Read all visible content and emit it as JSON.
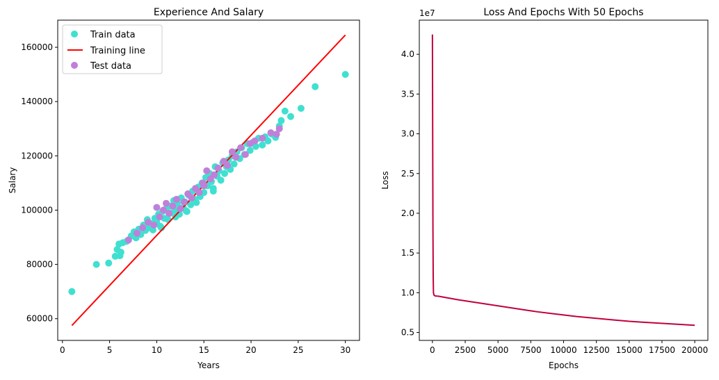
{
  "chart_data": [
    {
      "type": "scatter",
      "title": "Experience And Salary",
      "xlabel": "Years",
      "ylabel": "Salary",
      "xlim": [
        -0.5,
        31.5
      ],
      "ylim": [
        52000,
        170000
      ],
      "xticks": [
        0,
        5,
        10,
        15,
        20,
        25,
        30
      ],
      "yticks": [
        60000,
        80000,
        100000,
        120000,
        140000,
        160000
      ],
      "legend": "top-left",
      "grid": false,
      "series": [
        {
          "name": "Train data",
          "kind": "scatter",
          "color": "#40E0D0",
          "points": [
            [
              1,
              70000
            ],
            [
              3.6,
              80000
            ],
            [
              4.9,
              80500
            ],
            [
              5.6,
              83000
            ],
            [
              5.8,
              85500
            ],
            [
              6.0,
              87500
            ],
            [
              6.2,
              84500
            ],
            [
              6.4,
              88000
            ],
            [
              6.1,
              83200
            ],
            [
              6.8,
              88500
            ],
            [
              7.0,
              89000
            ],
            [
              7.3,
              90500
            ],
            [
              7.6,
              92000
            ],
            [
              7.8,
              89800
            ],
            [
              8.1,
              93000
            ],
            [
              8.3,
              91000
            ],
            [
              8.6,
              94500
            ],
            [
              8.8,
              92500
            ],
            [
              9.0,
              96500
            ],
            [
              9.2,
              93500
            ],
            [
              9.4,
              95000
            ],
            [
              9.6,
              92700
            ],
            [
              9.8,
              97000
            ],
            [
              10.0,
              95500
            ],
            [
              10.2,
              98500
            ],
            [
              10.4,
              94000
            ],
            [
              10.6,
              99500
            ],
            [
              10.8,
              97000
            ],
            [
              11.0,
              100500
            ],
            [
              11.2,
              96500
            ],
            [
              11.4,
              101500
            ],
            [
              11.6,
              99000
            ],
            [
              11.8,
              103500
            ],
            [
              12.0,
              100000
            ],
            [
              12.2,
              102500
            ],
            [
              12.4,
              98500
            ],
            [
              12.6,
              104500
            ],
            [
              12.8,
              101000
            ],
            [
              13.0,
              103000
            ],
            [
              13.2,
              99500
            ],
            [
              13.4,
              105500
            ],
            [
              13.6,
              102000
            ],
            [
              13.8,
              107000
            ],
            [
              14.0,
              104000
            ],
            [
              14.2,
              102800
            ],
            [
              14.4,
              108500
            ],
            [
              14.6,
              105000
            ],
            [
              14.8,
              110000
            ],
            [
              15.0,
              106500
            ],
            [
              15.2,
              112000
            ],
            [
              15.4,
              109000
            ],
            [
              15.6,
              113500
            ],
            [
              15.8,
              110500
            ],
            [
              16.0,
              108000
            ],
            [
              16.2,
              116000
            ],
            [
              16.4,
              112500
            ],
            [
              16.6,
              114500
            ],
            [
              16.8,
              111000
            ],
            [
              17.0,
              117500
            ],
            [
              17.2,
              113500
            ],
            [
              17.4,
              116000
            ],
            [
              17.6,
              118500
            ],
            [
              17.8,
              115000
            ],
            [
              18.0,
              120000
            ],
            [
              18.2,
              117000
            ],
            [
              18.5,
              121500
            ],
            [
              18.8,
              119000
            ],
            [
              19.0,
              123000
            ],
            [
              19.3,
              120500
            ],
            [
              19.6,
              124500
            ],
            [
              19.9,
              122000
            ],
            [
              20.2,
              125000
            ],
            [
              20.5,
              123500
            ],
            [
              20.8,
              126500
            ],
            [
              21.2,
              124000
            ],
            [
              21.5,
              127000
            ],
            [
              21.8,
              125500
            ],
            [
              22.2,
              128000
            ],
            [
              22.6,
              126800
            ],
            [
              23.0,
              131000
            ],
            [
              23.2,
              133000
            ],
            [
              23.6,
              136500
            ],
            [
              24.2,
              134500
            ],
            [
              25.3,
              137500
            ],
            [
              26.8,
              145500
            ],
            [
              30.0,
              150000
            ],
            [
              16.0,
              107000
            ],
            [
              13.1,
              99800
            ],
            [
              10.5,
              93500
            ],
            [
              12.0,
              97500
            ]
          ]
        },
        {
          "name": "Training line",
          "kind": "line",
          "color": "#ff0000",
          "points": [
            [
              1,
              57500
            ],
            [
              30,
              164500
            ]
          ]
        },
        {
          "name": "Test data",
          "kind": "scatter",
          "color": "#BF80D9",
          "points": [
            [
              7.0,
              89000
            ],
            [
              7.9,
              91500
            ],
            [
              8.5,
              93500
            ],
            [
              9.1,
              95500
            ],
            [
              9.7,
              94500
            ],
            [
              10.0,
              101000
            ],
            [
              10.3,
              97500
            ],
            [
              10.7,
              100000
            ],
            [
              11.0,
              102500
            ],
            [
              11.3,
              98800
            ],
            [
              11.7,
              101500
            ],
            [
              12.1,
              104000
            ],
            [
              12.5,
              100500
            ],
            [
              12.9,
              103000
            ],
            [
              13.3,
              106000
            ],
            [
              13.7,
              104500
            ],
            [
              14.1,
              108000
            ],
            [
              14.5,
              106500
            ],
            [
              14.9,
              110000
            ],
            [
              15.3,
              114500
            ],
            [
              15.7,
              111500
            ],
            [
              16.1,
              113000
            ],
            [
              16.5,
              115500
            ],
            [
              17.1,
              118000
            ],
            [
              17.5,
              116500
            ],
            [
              18.0,
              121500
            ],
            [
              18.4,
              119500
            ],
            [
              18.9,
              123000
            ],
            [
              19.4,
              120500
            ],
            [
              19.9,
              124500
            ],
            [
              20.4,
              125500
            ],
            [
              21.2,
              126500
            ],
            [
              22.1,
              128500
            ],
            [
              22.7,
              128000
            ],
            [
              23.0,
              130000
            ],
            [
              15.0,
              109000
            ]
          ]
        }
      ]
    },
    {
      "type": "line",
      "title": "Loss And Epochs With 50 Epochs",
      "xlabel": "Epochs",
      "ylabel": "Loss",
      "offset_label": "1e7",
      "xlim": [
        -1000,
        21000
      ],
      "ylim": [
        0.4,
        4.43
      ],
      "xticks": [
        0,
        2500,
        5000,
        7500,
        10000,
        12500,
        15000,
        17500,
        20000
      ],
      "yticks": [
        0.5,
        1.0,
        1.5,
        2.0,
        2.5,
        3.0,
        3.5,
        4.0
      ],
      "ytick_labels": [
        "0.5",
        "1.0",
        "1.5",
        "2.0",
        "2.5",
        "3.0",
        "3.5",
        "4.0"
      ],
      "grid": false,
      "series": [
        {
          "name": "",
          "color": "#C2003C",
          "points": [
            [
              0,
              4.25
            ],
            [
              20,
              3.0
            ],
            [
              40,
              1.8
            ],
            [
              60,
              1.2
            ],
            [
              80,
              1.0
            ],
            [
              120,
              0.97
            ],
            [
              200,
              0.96
            ],
            [
              500,
              0.955
            ],
            [
              1000,
              0.94
            ],
            [
              2000,
              0.91
            ],
            [
              3000,
              0.885
            ],
            [
              4000,
              0.86
            ],
            [
              5000,
              0.835
            ],
            [
              6000,
              0.81
            ],
            [
              7000,
              0.785
            ],
            [
              8000,
              0.76
            ],
            [
              9000,
              0.74
            ],
            [
              10000,
              0.72
            ],
            [
              11000,
              0.7
            ],
            [
              12000,
              0.685
            ],
            [
              13000,
              0.67
            ],
            [
              14000,
              0.655
            ],
            [
              15000,
              0.64
            ],
            [
              16000,
              0.63
            ],
            [
              17000,
              0.62
            ],
            [
              18000,
              0.61
            ],
            [
              19000,
              0.6
            ],
            [
              20000,
              0.59
            ]
          ]
        }
      ]
    }
  ]
}
